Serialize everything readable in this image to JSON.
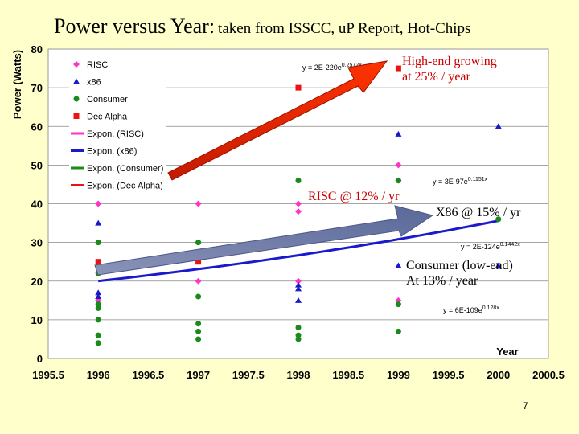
{
  "slide": {
    "title_main": "Power versus Year:",
    "title_sub": "taken from ISSCC, uP Report, Hot-Chips",
    "page_number": "7"
  },
  "annotations": {
    "high_end_1": "High-end growing",
    "high_end_2": "at 25% / year",
    "risc": "RISC @ 12% / yr",
    "x86": "X86 @ 15% / yr",
    "consumer_1": "Consumer (low-end)",
    "consumer_2": "At 13% / year"
  },
  "equations": {
    "dec_alpha": "y = 2E-220e",
    "dec_alpha_exp": "0.2572x",
    "risc": "y = 3E-97e",
    "risc_exp": "0.1151x",
    "x86": "y = 2E-124e",
    "x86_exp": "0.1442x",
    "consumer": "y = 6E-109e",
    "consumer_exp": "0.128x"
  },
  "colors": {
    "risc": "#ff33cc",
    "x86": "#1a1acc",
    "consumer": "#1a8a1a",
    "dec_alpha": "#ee1111",
    "arrow_red": "#ee2200",
    "arrow_blue": "#6677aa"
  },
  "chart_data": {
    "type": "scatter",
    "title": "",
    "xlabel": "Year",
    "ylabel": "Power (Watts)",
    "xlim": [
      1995.5,
      2000.5
    ],
    "ylim": [
      0,
      80
    ],
    "x_ticks": [
      "1995.5",
      "1996",
      "1996.5",
      "1997",
      "1997.5",
      "1998",
      "1998.5",
      "1999",
      "1999.5",
      "2000",
      "2000.5"
    ],
    "y_ticks": [
      "0",
      "10",
      "20",
      "30",
      "40",
      "50",
      "60",
      "70",
      "80"
    ],
    "grid": "horizontal",
    "legend_position": "top-left",
    "series": [
      {
        "name": "RISC",
        "marker": "diamond",
        "color_key": "risc",
        "points": [
          [
            1996,
            40
          ],
          [
            1996,
            24
          ],
          [
            1996,
            15
          ],
          [
            1997,
            40
          ],
          [
            1997,
            20
          ],
          [
            1998,
            40
          ],
          [
            1998,
            38
          ],
          [
            1998,
            20
          ],
          [
            1999,
            50
          ],
          [
            1999,
            46
          ],
          [
            1999,
            38
          ],
          [
            1999,
            15
          ]
        ]
      },
      {
        "name": "x86",
        "marker": "triangle",
        "color_key": "x86",
        "points": [
          [
            1996,
            35
          ],
          [
            1996,
            17
          ],
          [
            1996,
            16
          ],
          [
            1998,
            19
          ],
          [
            1998,
            18
          ],
          [
            1998,
            15
          ],
          [
            1999,
            58
          ],
          [
            1999,
            24
          ],
          [
            2000,
            60
          ],
          [
            2000,
            24
          ]
        ]
      },
      {
        "name": "Consumer",
        "marker": "circle",
        "color_key": "consumer",
        "points": [
          [
            1996,
            30
          ],
          [
            1996,
            22
          ],
          [
            1996,
            14
          ],
          [
            1996,
            13
          ],
          [
            1996,
            10
          ],
          [
            1996,
            6
          ],
          [
            1996,
            4
          ],
          [
            1997,
            30
          ],
          [
            1997,
            16
          ],
          [
            1997,
            9
          ],
          [
            1997,
            7
          ],
          [
            1997,
            5
          ],
          [
            1998,
            46
          ],
          [
            1998,
            8
          ],
          [
            1998,
            6
          ],
          [
            1998,
            5
          ],
          [
            1999,
            46
          ],
          [
            1999,
            14
          ],
          [
            1999,
            7
          ],
          [
            2000,
            36
          ]
        ]
      },
      {
        "name": "Dec Alpha",
        "marker": "square",
        "color_key": "dec_alpha",
        "points": [
          [
            1996,
            25
          ],
          [
            1997,
            25
          ],
          [
            1998,
            70
          ],
          [
            1999,
            75
          ]
        ]
      }
    ],
    "trendlines": [
      {
        "name": "Expon. (RISC)",
        "color_key": "risc",
        "a_log10": -96.5229,
        "b": 0.1151
      },
      {
        "name": "Expon. (x86)",
        "color_key": "x86",
        "a_log10": -123.69897,
        "b": 0.1442
      },
      {
        "name": "Expon. (Consumer)",
        "color_key": "consumer",
        "a_log10": -108.22185,
        "b": 0.128
      },
      {
        "name": "Expon. (Dec Alpha)",
        "color_key": "dec_alpha",
        "a_log10": -219.69897,
        "b": 0.2572
      }
    ]
  }
}
